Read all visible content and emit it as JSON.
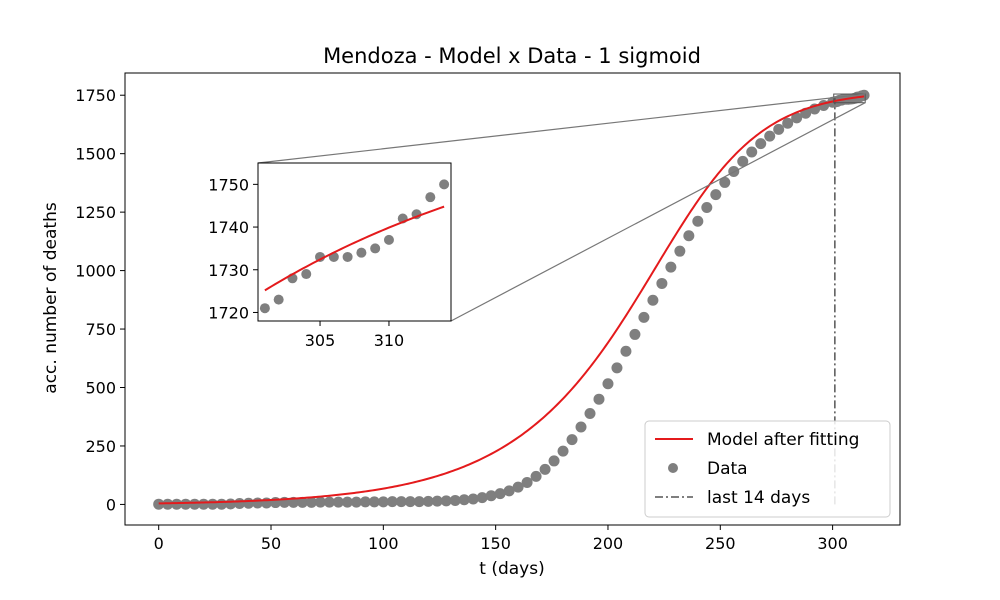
{
  "chart_data": {
    "type": "scatter",
    "title": "Mendoza - Model x Data - 1 sigmoid",
    "xlabel": "t (days)",
    "ylabel": "acc. number of deaths",
    "xlim": [
      -15,
      330
    ],
    "ylim": [
      -88,
      1845
    ],
    "xticks": [
      0,
      50,
      100,
      150,
      200,
      250,
      300
    ],
    "yticks": [
      0,
      250,
      500,
      750,
      1000,
      1250,
      1500,
      1750
    ],
    "grid": false,
    "legend_position": "lower-right",
    "colors": {
      "model": "#e41a1c",
      "data": "#7f7f7f",
      "last14": "#555555"
    },
    "model": {
      "name": "Model after fitting",
      "equation_type": "sigmoid",
      "x_start": 0,
      "x_end": 314
    },
    "data": {
      "name": "Data",
      "x": [
        0,
        4,
        8,
        12,
        16,
        20,
        24,
        28,
        32,
        36,
        40,
        44,
        48,
        52,
        56,
        60,
        64,
        68,
        72,
        76,
        80,
        84,
        88,
        92,
        96,
        100,
        104,
        108,
        112,
        116,
        120,
        124,
        128,
        132,
        136,
        140,
        144,
        148,
        152,
        156,
        160,
        164,
        168,
        172,
        176,
        180,
        184,
        188,
        192,
        196,
        200,
        204,
        208,
        212,
        216,
        220,
        224,
        228,
        232,
        236,
        240,
        244,
        248,
        252,
        256,
        260,
        264,
        268,
        272,
        276,
        280,
        284,
        288,
        292,
        296,
        300,
        301,
        302,
        303,
        304,
        305,
        306,
        307,
        308,
        309,
        310,
        311,
        312,
        313,
        314
      ],
      "y": [
        1,
        1,
        1,
        1,
        1,
        1,
        1,
        1,
        2,
        4,
        5,
        6,
        6,
        8,
        9,
        9,
        9,
        9,
        10,
        10,
        10,
        10,
        10,
        11,
        11,
        11,
        12,
        12,
        12,
        12,
        13,
        14,
        15,
        17,
        20,
        23,
        29,
        37,
        46,
        58,
        74,
        94,
        120,
        150,
        186,
        228,
        277,
        331,
        389,
        450,
        516,
        584,
        655,
        727,
        800,
        873,
        945,
        1015,
        1083,
        1149,
        1211,
        1270,
        1325,
        1377,
        1424,
        1467,
        1507,
        1543,
        1575,
        1604,
        1630,
        1653,
        1673,
        1691,
        1706,
        1720,
        1721,
        1723,
        1728,
        1729,
        1733,
        1733,
        1733,
        1734,
        1735,
        1737,
        1742,
        1743,
        1747,
        1750
      ]
    },
    "last_14_days": {
      "name": "last 14 days",
      "x": 301,
      "y_range": [
        0,
        1750
      ]
    },
    "inset": {
      "xlim": [
        300.5,
        314.5
      ],
      "ylim": [
        1718,
        1755
      ],
      "xticks": [
        305,
        310
      ],
      "yticks": [
        1720,
        1730,
        1740,
        1750
      ]
    }
  }
}
